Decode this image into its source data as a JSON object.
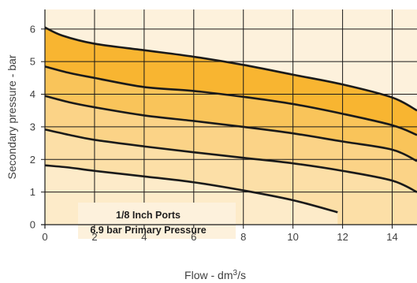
{
  "chart_data": {
    "type": "area",
    "x_label": "Flow - dm",
    "x_label_superscript": "3",
    "x_label_suffix": "/s",
    "y_label": "Secondary pressure - bar",
    "x_ticks": [
      "0",
      "2",
      "4",
      "6",
      "8",
      "10",
      "12",
      "14"
    ],
    "y_ticks": [
      "0",
      "1",
      "2",
      "3",
      "4",
      "5",
      "6"
    ],
    "xlim": [
      0,
      15
    ],
    "ylim": [
      0,
      6.6
    ],
    "grid": true,
    "annotation": [
      "1/8 Inch Ports",
      "6.9 bar Primary Pressure"
    ],
    "curve_color": "#1a1a1a",
    "grid_color": "#1a1a1a",
    "series": [
      {
        "values": [
          [
            0,
            6.05
          ],
          [
            0.7,
            5.8
          ],
          [
            2,
            5.55
          ],
          [
            4,
            5.35
          ],
          [
            6,
            5.15
          ],
          [
            8,
            4.9
          ],
          [
            10,
            4.6
          ],
          [
            12,
            4.3
          ],
          [
            14,
            3.9
          ],
          [
            15,
            3.5
          ]
        ],
        "fill": "#f8b531"
      },
      {
        "values": [
          [
            0,
            4.85
          ],
          [
            1,
            4.65
          ],
          [
            2,
            4.5
          ],
          [
            4,
            4.22
          ],
          [
            6,
            4.1
          ],
          [
            8,
            3.92
          ],
          [
            10,
            3.7
          ],
          [
            12,
            3.4
          ],
          [
            14,
            3.05
          ],
          [
            15,
            2.75
          ]
        ],
        "fill": "#f9c45a"
      },
      {
        "values": [
          [
            0,
            3.95
          ],
          [
            1,
            3.75
          ],
          [
            2,
            3.6
          ],
          [
            4,
            3.35
          ],
          [
            6,
            3.18
          ],
          [
            8,
            3.0
          ],
          [
            10,
            2.8
          ],
          [
            12,
            2.55
          ],
          [
            14,
            2.3
          ],
          [
            15,
            1.95
          ]
        ],
        "fill": "#fbd387"
      },
      {
        "values": [
          [
            0,
            2.92
          ],
          [
            1,
            2.75
          ],
          [
            2,
            2.6
          ],
          [
            4,
            2.4
          ],
          [
            6,
            2.22
          ],
          [
            8,
            2.05
          ],
          [
            10,
            1.88
          ],
          [
            12,
            1.65
          ],
          [
            14,
            1.35
          ],
          [
            15,
            1.0
          ]
        ],
        "fill": "#fcdfa7"
      },
      {
        "values": [
          [
            0,
            1.82
          ],
          [
            1,
            1.75
          ],
          [
            2,
            1.65
          ],
          [
            4,
            1.48
          ],
          [
            6,
            1.3
          ],
          [
            8,
            1.05
          ],
          [
            10,
            0.75
          ],
          [
            11.8,
            0.38
          ]
        ],
        "fill": "#fdebc9"
      }
    ],
    "background_fill": "#fdf1dc"
  }
}
